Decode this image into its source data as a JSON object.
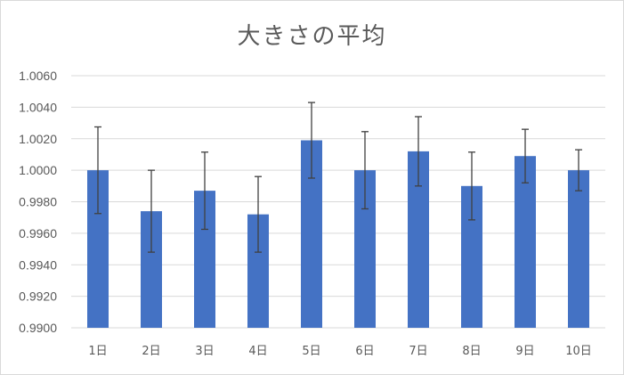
{
  "chart_data": {
    "type": "bar",
    "title": "大きさの平均",
    "categories": [
      "1日",
      "2日",
      "3日",
      "4日",
      "5日",
      "6日",
      "7日",
      "8日",
      "9日",
      "10日"
    ],
    "values": [
      1.0,
      0.9974,
      0.9987,
      0.9972,
      1.0019,
      1.0,
      1.0012,
      0.999,
      1.0009,
      1.0
    ],
    "error_bars": [
      0.00275,
      0.0026,
      0.00245,
      0.0024,
      0.0024,
      0.00245,
      0.0022,
      0.00215,
      0.0017,
      0.0013
    ],
    "ylim": [
      0.99,
      1.006
    ],
    "yticks": [
      "0.9900",
      "0.9920",
      "0.9940",
      "0.9960",
      "0.9980",
      "1.0000",
      "1.0020",
      "1.0040",
      "1.0060"
    ],
    "ytick_values": [
      0.99,
      0.992,
      0.994,
      0.996,
      0.998,
      1.0,
      1.002,
      1.004,
      1.006
    ],
    "xlabel": "",
    "ylabel": "",
    "grid": true,
    "legend": "none",
    "colors": {
      "bar": "#4472c4",
      "error": "#404040",
      "grid": "#d9d9d9",
      "text": "#595959"
    }
  }
}
